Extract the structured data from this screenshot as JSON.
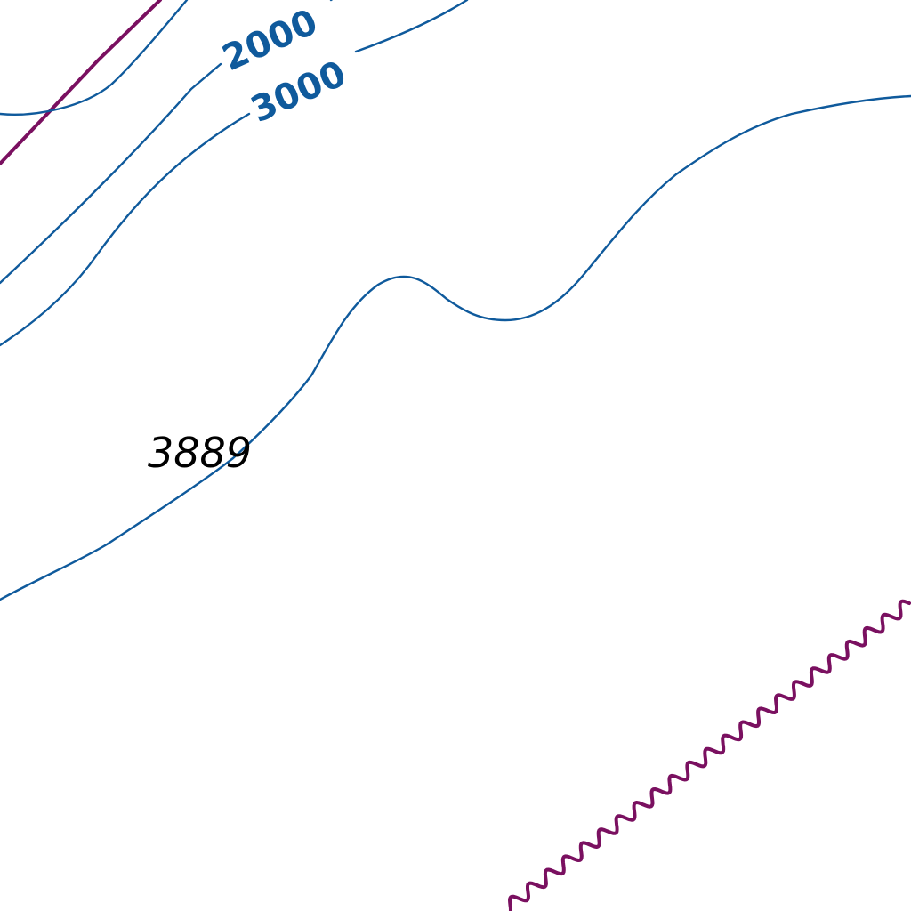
{
  "map": {
    "colors": {
      "contour": "#0f5a9c",
      "boundary": "#7a1060",
      "background": "#ffffff",
      "spot_label": "#000000"
    },
    "contour_labels": {
      "c2000": "2000",
      "c3000": "3000"
    },
    "spot_elevation": "3889",
    "features": [
      "contour-lines",
      "administrative-boundary-straight",
      "administrative-boundary-wavy"
    ]
  }
}
